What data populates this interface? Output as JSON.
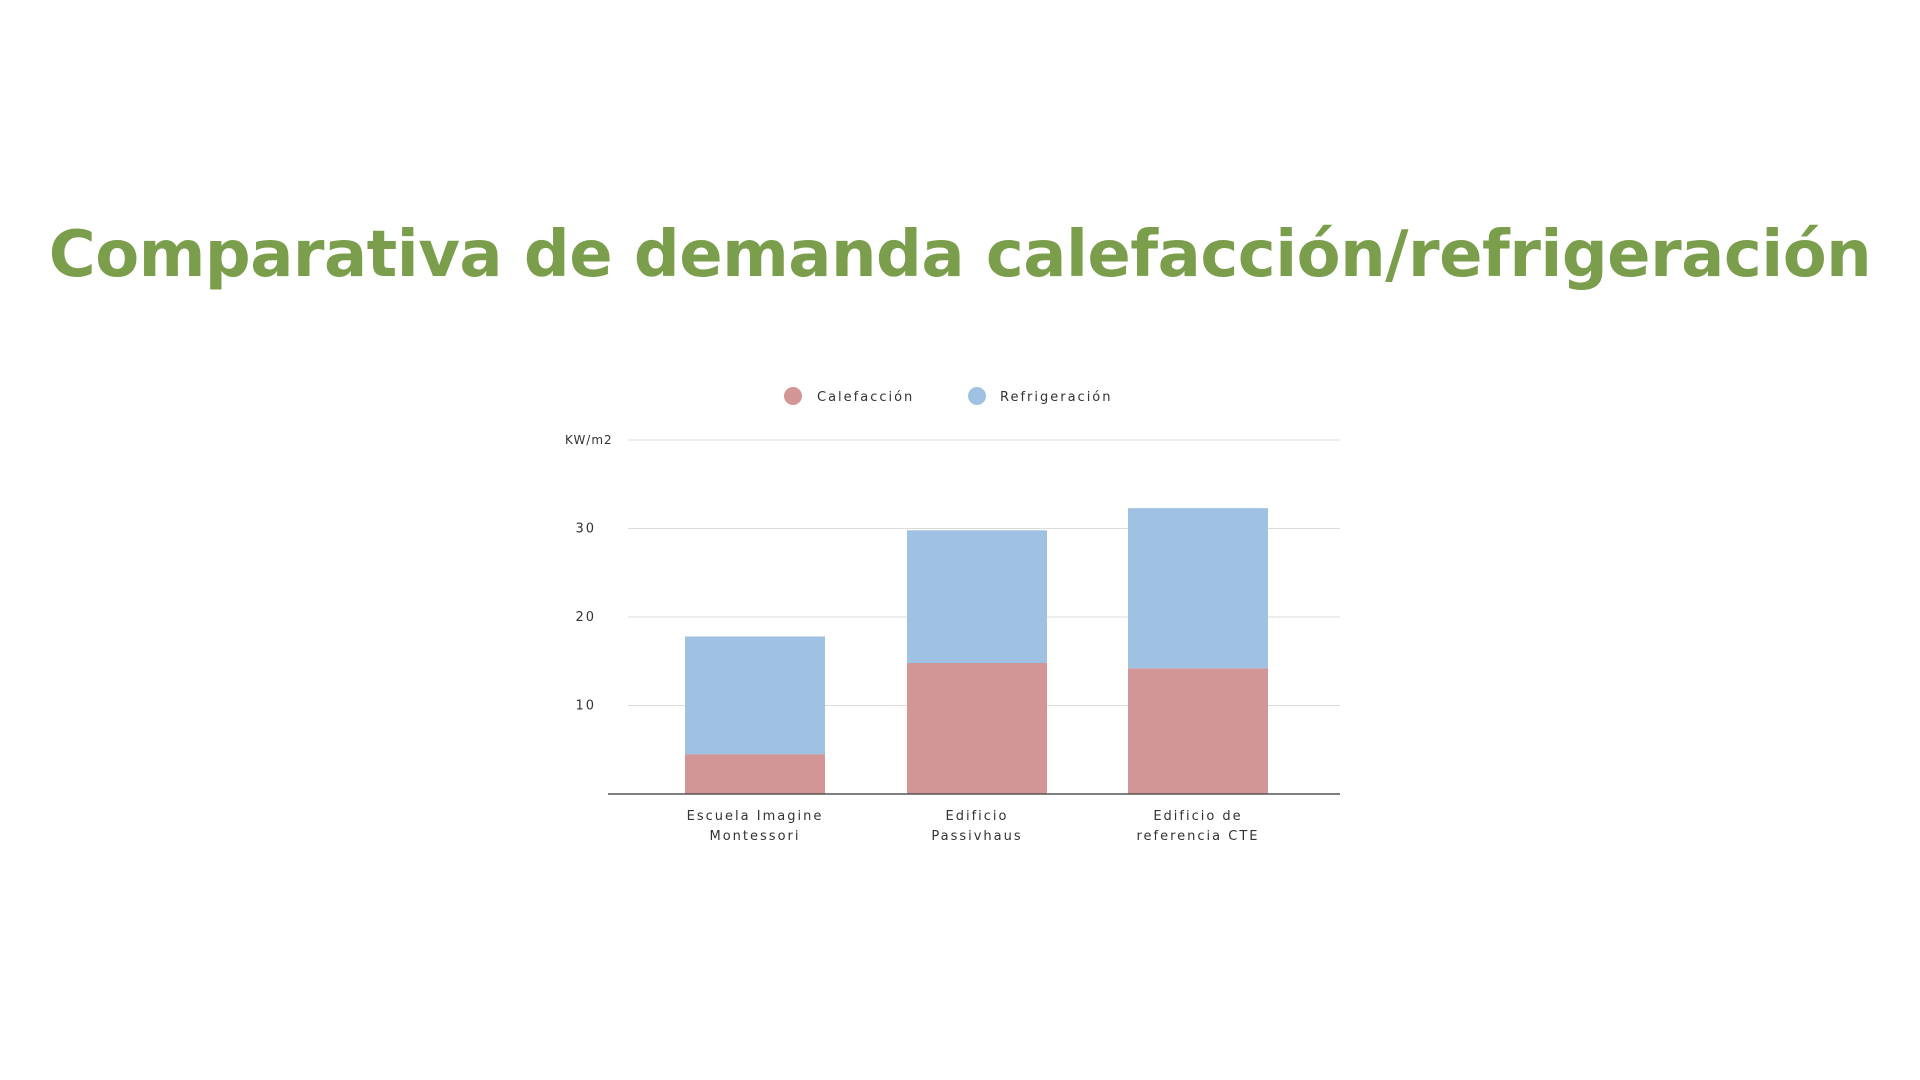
{
  "title": "Comparativa de demanda calefacción/refrigeración",
  "colors": {
    "title": "#7a9e4b",
    "calefaccion": "#d29696",
    "refrigeracion": "#a0c2e2"
  },
  "chart_data": {
    "type": "bar",
    "stacked": true,
    "title": "",
    "ylabel": "KW/m2",
    "ylim": [
      0,
      40
    ],
    "yticks": [
      10,
      20,
      30
    ],
    "grid": true,
    "legend_position": "top",
    "categories": [
      [
        "Escuela Imagine",
        "Montessori"
      ],
      [
        "Edificio",
        "Passivhaus"
      ],
      [
        "Edificio de",
        "referencia CTE"
      ]
    ],
    "series": [
      {
        "name": "Calefacción",
        "color": "#d29696",
        "values": [
          4.5,
          14.8,
          14.2
        ]
      },
      {
        "name": "Refrigeración",
        "color": "#a0c2e2",
        "values": [
          13.3,
          15.0,
          18.1
        ]
      }
    ]
  }
}
